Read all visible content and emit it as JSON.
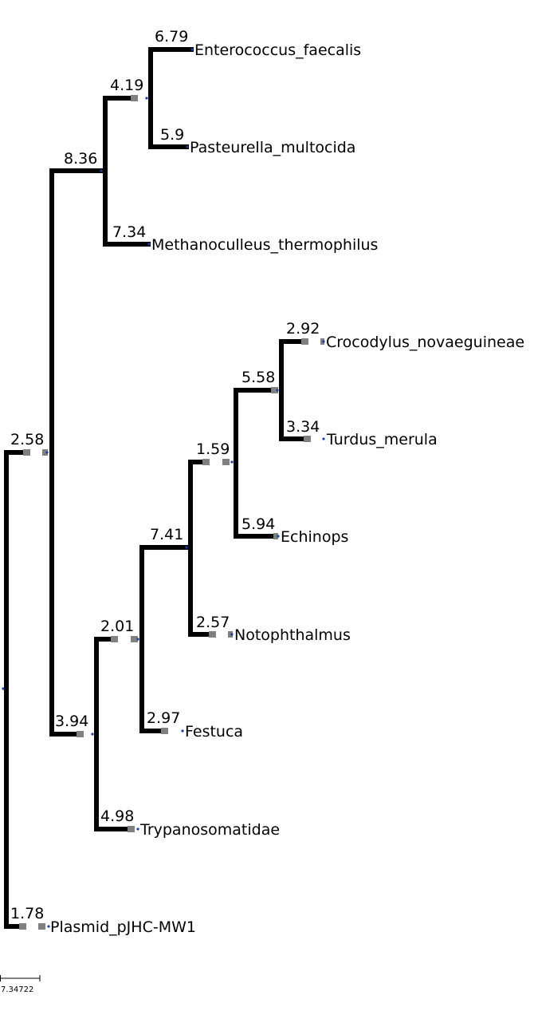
{
  "colors": {
    "branch": "#000000",
    "stub": "#808080",
    "node": "#1f3fa0",
    "text": "#000000"
  },
  "tree": {
    "leaves": [
      "Enterococcus_faecalis",
      "Pasteurella_multocida",
      "Methanoculleus_thermophilus",
      "Crocodylus_novaeguineae",
      "Turdus_merula",
      "Echinops",
      "Notophthalmus",
      "Festuca",
      "Trypanosomatidae",
      "Plasmid_pJHC-MW1"
    ],
    "branch_labels": [
      {
        "id": "b_root_a",
        "value": "2.58"
      },
      {
        "id": "b_root_b",
        "value": "1.78"
      },
      {
        "id": "b_a_c",
        "value": "8.36"
      },
      {
        "id": "b_a_d",
        "value": "3.94"
      },
      {
        "id": "b_c_e",
        "value": "4.19"
      },
      {
        "id": "b_c_meth",
        "value": "7.34"
      },
      {
        "id": "b_e_ent",
        "value": "6.79"
      },
      {
        "id": "b_e_past",
        "value": "5.9"
      },
      {
        "id": "b_d_f",
        "value": "2.01"
      },
      {
        "id": "b_d_tryp",
        "value": "4.98"
      },
      {
        "id": "b_f_g",
        "value": "7.41"
      },
      {
        "id": "b_f_fest",
        "value": "2.97"
      },
      {
        "id": "b_g_h",
        "value": "1.59"
      },
      {
        "id": "b_g_noto",
        "value": "2.57"
      },
      {
        "id": "b_h_i",
        "value": "5.58"
      },
      {
        "id": "b_h_echi",
        "value": "5.94"
      },
      {
        "id": "b_i_croc",
        "value": "2.92"
      },
      {
        "id": "b_i_turd",
        "value": "3.34"
      }
    ]
  },
  "scale_bar": {
    "label": "7.34722"
  }
}
